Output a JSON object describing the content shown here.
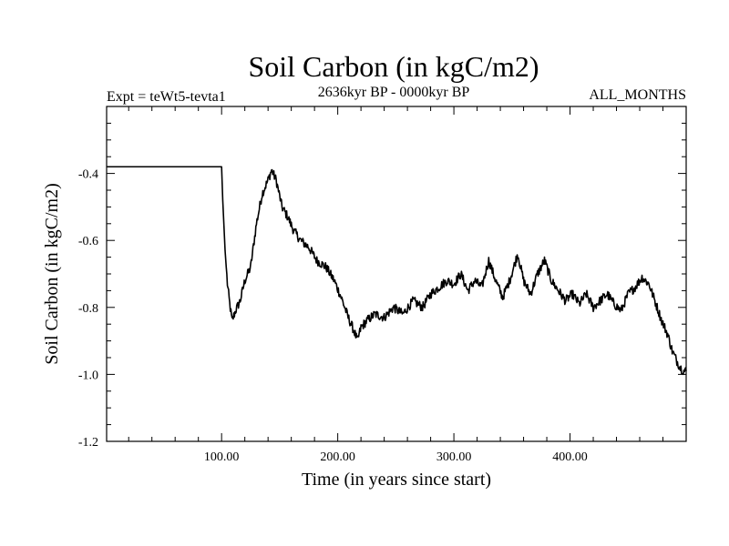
{
  "chart_data": {
    "type": "line",
    "title": "Soil Carbon (in kgC/m2)",
    "subtitle_left": "Expt = teWt5-tevta1",
    "subtitle_center": "2636kyr BP - 0000kyr BP",
    "subtitle_right": "ALL_MONTHS",
    "xlabel": "Time (in years since start)",
    "ylabel": "Soil Carbon (in kgC/m2)",
    "xlim": [
      1,
      500
    ],
    "ylim": [
      -1.2,
      -0.2
    ],
    "x_ticks": [
      100,
      200,
      300,
      400
    ],
    "x_tick_labels": [
      "100.00",
      "200.00",
      "300.00",
      "400.00"
    ],
    "y_ticks": [
      -0.4,
      -0.6,
      -0.8,
      -1.0,
      -1.2
    ],
    "y_tick_labels": [
      "-0.4",
      "-0.6",
      "-0.8",
      "-1.0",
      "-1.2"
    ],
    "grid": false,
    "series": [
      {
        "name": "Soil Carbon",
        "color": "#000000",
        "x": [
          1,
          99,
          100,
          101,
          103,
          105,
          107,
          109,
          112,
          116,
          120,
          125,
          130,
          135,
          140,
          143,
          147,
          152,
          157,
          162,
          168,
          175,
          182,
          190,
          197,
          203,
          209,
          214,
          217,
          220,
          225,
          232,
          240,
          248,
          256,
          265,
          273,
          280,
          287,
          294,
          300,
          306,
          312,
          318,
          324,
          330,
          336,
          342,
          348,
          355,
          360,
          366,
          372,
          378,
          384,
          390,
          396,
          402,
          408,
          414,
          420,
          426,
          432,
          438,
          444,
          450,
          456,
          462,
          468,
          474,
          479,
          484,
          488,
          492,
          495,
          498,
          500
        ],
        "values": [
          -0.38,
          -0.38,
          -0.38,
          -0.48,
          -0.63,
          -0.73,
          -0.79,
          -0.84,
          -0.81,
          -0.78,
          -0.72,
          -0.68,
          -0.55,
          -0.46,
          -0.42,
          -0.39,
          -0.42,
          -0.5,
          -0.53,
          -0.57,
          -0.6,
          -0.62,
          -0.66,
          -0.68,
          -0.72,
          -0.77,
          -0.83,
          -0.87,
          -0.9,
          -0.86,
          -0.84,
          -0.82,
          -0.83,
          -0.8,
          -0.82,
          -0.78,
          -0.8,
          -0.76,
          -0.74,
          -0.72,
          -0.73,
          -0.7,
          -0.75,
          -0.72,
          -0.74,
          -0.66,
          -0.72,
          -0.77,
          -0.72,
          -0.64,
          -0.72,
          -0.76,
          -0.7,
          -0.66,
          -0.72,
          -0.75,
          -0.78,
          -0.76,
          -0.79,
          -0.76,
          -0.8,
          -0.78,
          -0.76,
          -0.79,
          -0.81,
          -0.76,
          -0.74,
          -0.71,
          -0.73,
          -0.79,
          -0.84,
          -0.88,
          -0.93,
          -0.96,
          -0.98,
          -0.99,
          -0.99
        ]
      }
    ]
  }
}
